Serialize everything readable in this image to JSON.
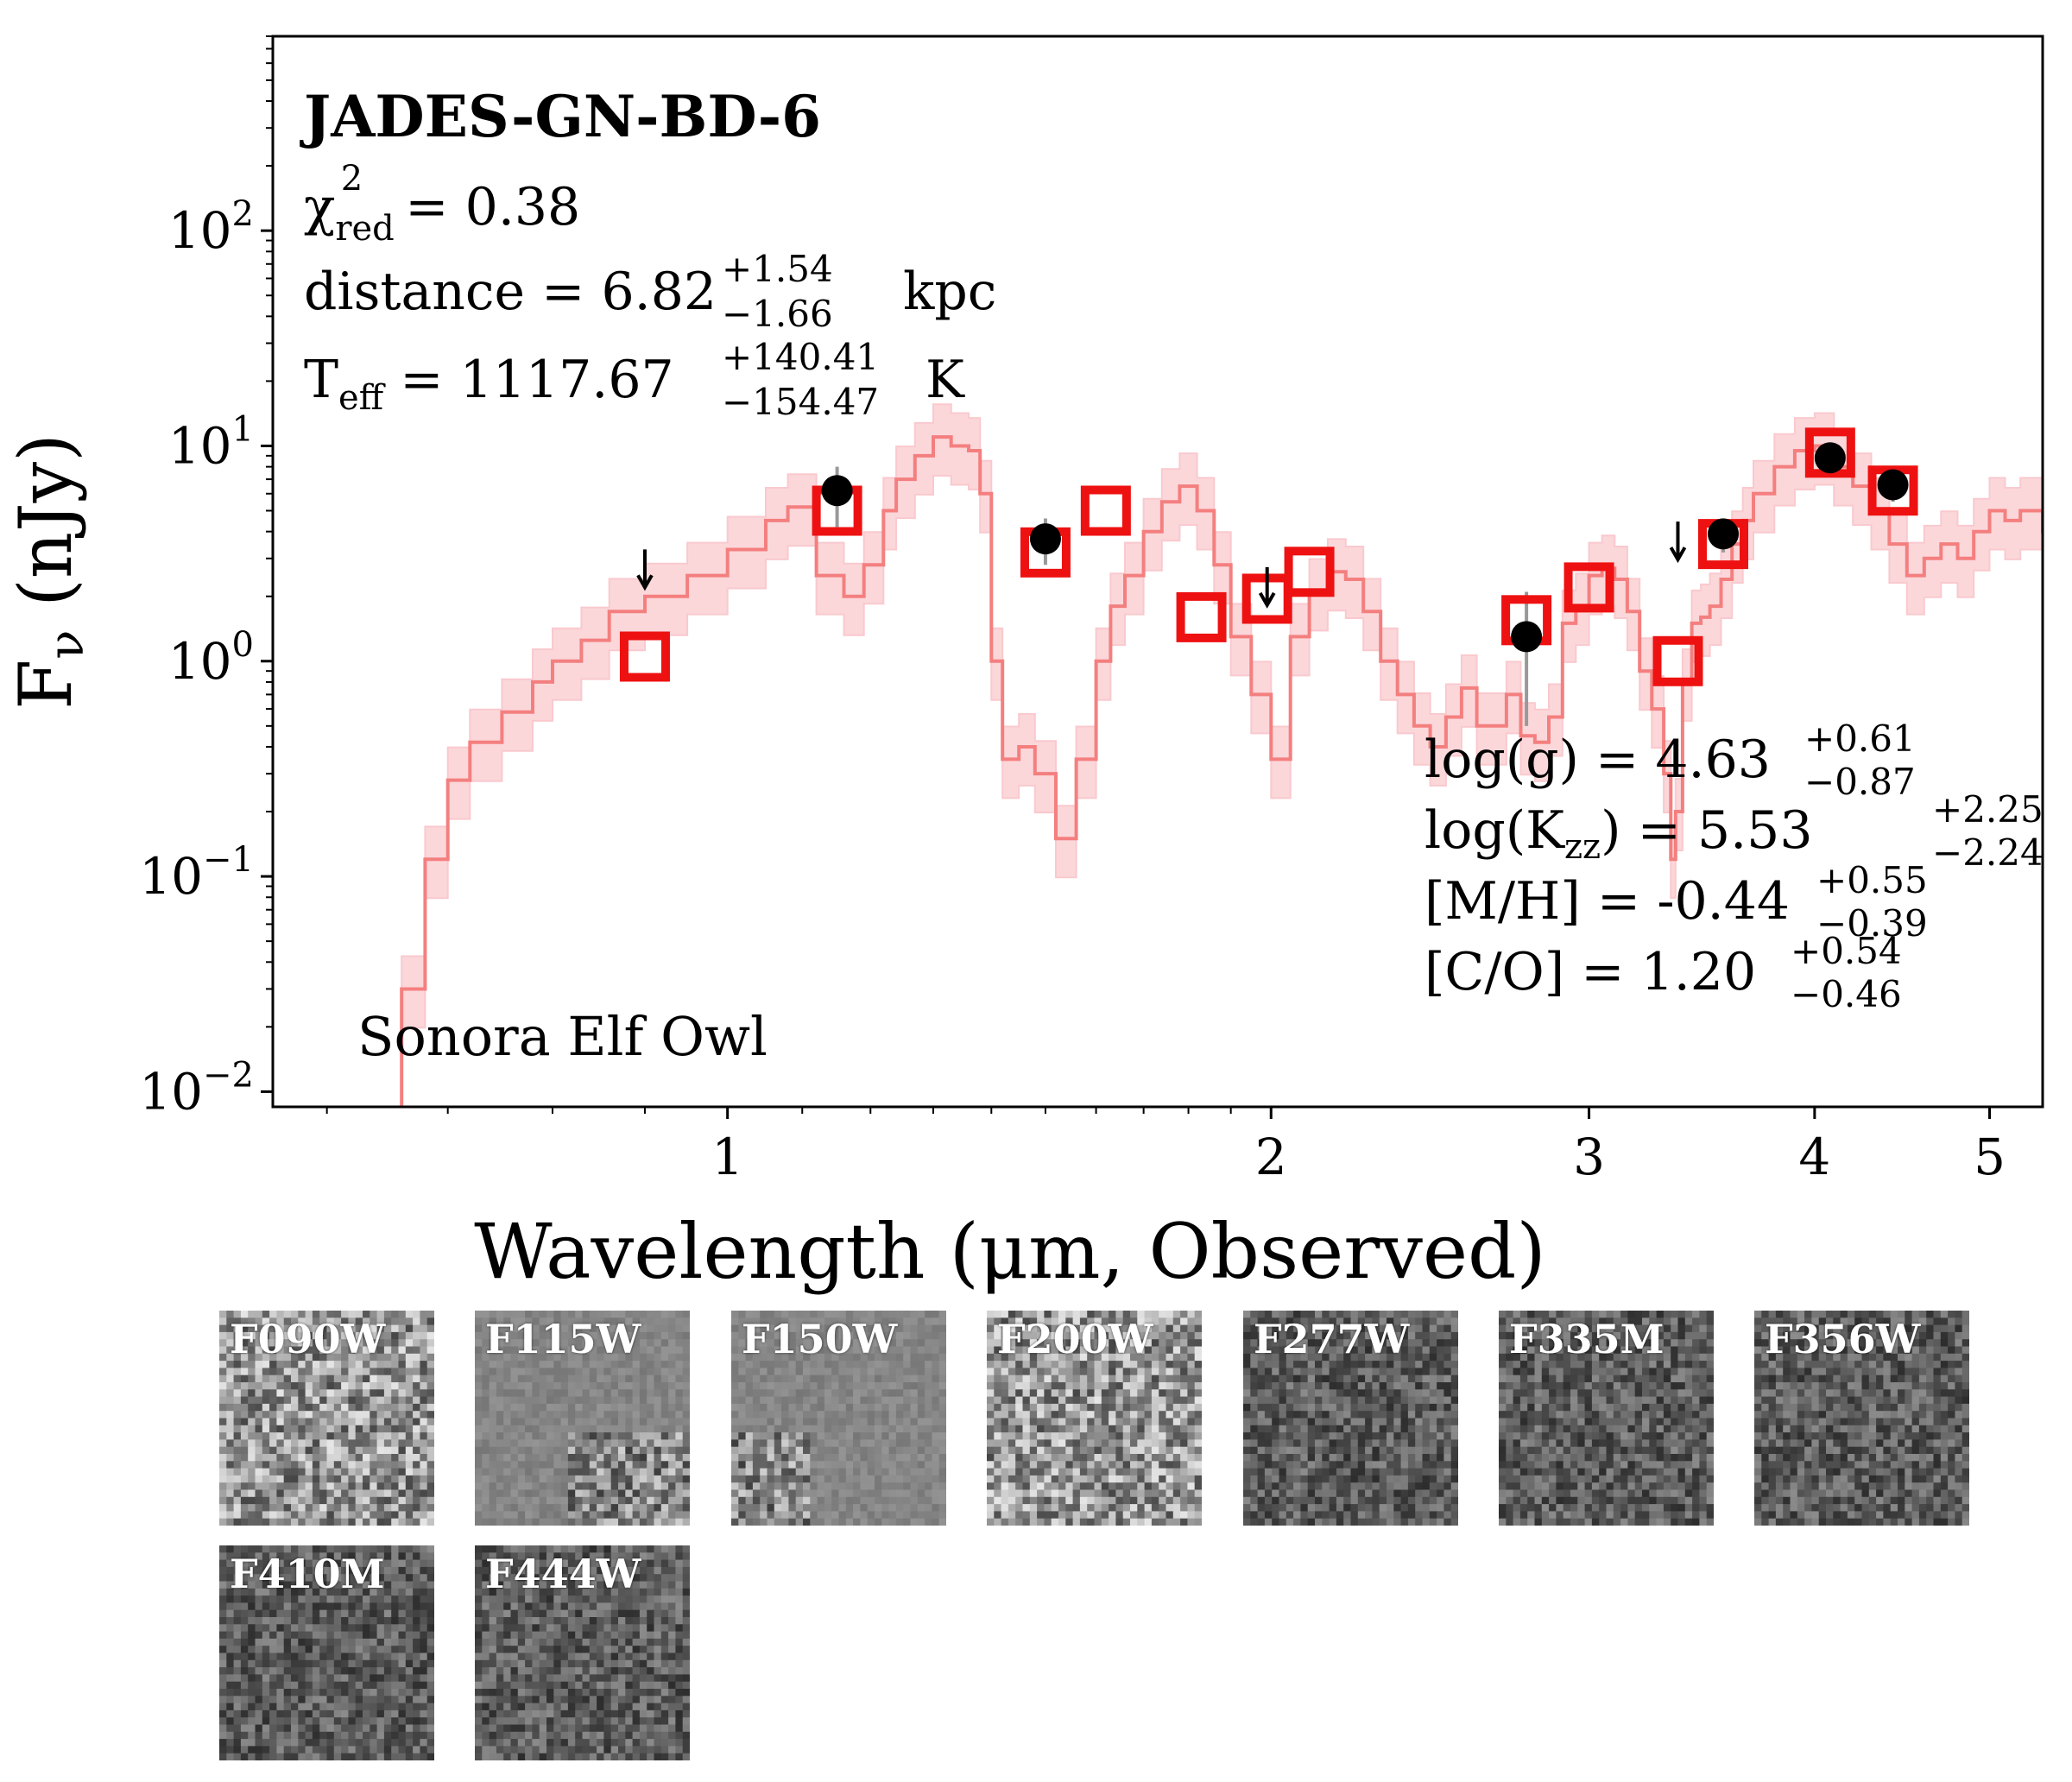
{
  "chart_data": {
    "type": "line",
    "title": "JADES-GN-BD-6",
    "chi2_value": "0.38",
    "chi2_symbol": "χ",
    "chi2_sup": "2",
    "chi2_sub": "red",
    "distance_label": "distance = ",
    "distance_value": "6.82",
    "distance_err_up": "+1.54",
    "distance_err_down": "−1.66",
    "distance_unit": "kpc",
    "teff_label": "T",
    "teff_sub": "eff",
    "teff_value": "1117.67",
    "teff_err_up": "+140.41",
    "teff_err_down": "−154.47",
    "teff_unit": "K",
    "params": [
      {
        "label": "log(g) = ",
        "sub": "",
        "label2": "",
        "value": "4.63",
        "up": "+0.61",
        "down": "−0.87"
      },
      {
        "label": "log(K",
        "sub": "zz",
        "label2": ") = ",
        "value": "5.53",
        "up": "+2.25",
        "down": "−2.24"
      },
      {
        "label": "[M/H] = ",
        "sub": "",
        "label2": "",
        "value": "-0.44",
        "up": "+0.55",
        "down": "−0.39"
      },
      {
        "label": "[C/O] = ",
        "sub": "",
        "label2": "",
        "value": "1.20",
        "up": "+0.54",
        "down": "−0.46"
      }
    ],
    "model_name": "Sonora Elf Owl",
    "xlabel": "Wavelength (μm, Observed)",
    "ylabel_main": "F",
    "ylabel_sub": "ν",
    "ylabel_unit": " (nJy)",
    "xscale": "log",
    "yscale": "log",
    "xlim": [
      0.56,
      5.35
    ],
    "ylim": [
      0.0085,
      800
    ],
    "xticks": [
      {
        "value": 1,
        "label": "1"
      },
      {
        "value": 2,
        "label": "2"
      },
      {
        "value": 3,
        "label": "3"
      },
      {
        "value": 4,
        "label": "4"
      },
      {
        "value": 5,
        "label": "5"
      }
    ],
    "yticks": [
      {
        "value": 0.01,
        "base": "10",
        "exp": "−2"
      },
      {
        "value": 0.1,
        "base": "10",
        "exp": "−1"
      },
      {
        "value": 1,
        "base": "10",
        "exp": "0"
      },
      {
        "value": 10,
        "base": "10",
        "exp": "1"
      },
      {
        "value": 100,
        "base": "10",
        "exp": "2"
      }
    ],
    "model_spectrum": {
      "x": [
        0.64,
        0.66,
        0.68,
        0.7,
        0.72,
        0.75,
        0.78,
        0.8,
        0.83,
        0.86,
        0.9,
        0.95,
        1.0,
        1.05,
        1.08,
        1.12,
        1.16,
        1.19,
        1.22,
        1.24,
        1.27,
        1.3,
        1.33,
        1.36,
        1.38,
        1.4,
        1.42,
        1.45,
        1.48,
        1.52,
        1.56,
        1.6,
        1.63,
        1.66,
        1.7,
        1.74,
        1.78,
        1.82,
        1.86,
        1.9,
        1.95,
        2.0,
        2.05,
        2.1,
        2.15,
        2.2,
        2.25,
        2.3,
        2.35,
        2.4,
        2.45,
        2.5,
        2.55,
        2.6,
        2.65,
        2.7,
        2.75,
        2.8,
        2.85,
        2.9,
        2.95,
        3.0,
        3.05,
        3.1,
        3.15,
        3.2,
        3.25,
        3.3,
        3.33,
        3.35,
        3.38,
        3.42,
        3.46,
        3.5,
        3.55,
        3.6,
        3.65,
        3.7,
        3.8,
        3.9,
        4.0,
        4.1,
        4.2,
        4.3,
        4.4,
        4.5,
        4.6,
        4.7,
        4.8,
        4.9,
        5.0,
        5.1,
        5.2,
        5.35
      ],
      "y": [
        0.006,
        0.03,
        0.12,
        0.28,
        0.42,
        0.58,
        0.8,
        1.0,
        1.25,
        1.7,
        2.0,
        2.5,
        3.3,
        4.5,
        5.2,
        2.5,
        2.0,
        2.8,
        5.0,
        7.0,
        9.0,
        11.0,
        10.0,
        9.5,
        6.0,
        1.0,
        0.35,
        0.4,
        0.3,
        0.15,
        0.35,
        1.0,
        1.8,
        2.5,
        4.0,
        5.5,
        6.5,
        5.0,
        2.8,
        1.3,
        0.7,
        0.35,
        1.3,
        2.1,
        2.6,
        2.4,
        1.7,
        1.0,
        0.7,
        0.5,
        0.4,
        0.55,
        0.75,
        0.5,
        0.5,
        0.7,
        0.45,
        0.42,
        0.55,
        1.5,
        1.8,
        2.5,
        2.7,
        2.4,
        1.7,
        0.9,
        0.6,
        0.3,
        0.12,
        0.2,
        0.8,
        1.5,
        1.6,
        1.8,
        2.4,
        3.5,
        4.5,
        6.0,
        8.0,
        9.5,
        10.0,
        8.0,
        6.5,
        5.0,
        3.5,
        2.5,
        3.0,
        3.5,
        3.0,
        4.0,
        5.0,
        4.5,
        5.0,
        4.0
      ]
    },
    "model_photometry": {
      "x": [
        0.9,
        1.15,
        1.5,
        1.62,
        1.83,
        1.99,
        2.1,
        2.77,
        3.0,
        3.36,
        3.56,
        4.08,
        4.42
      ],
      "y": [
        1.05,
        5.0,
        3.2,
        5.0,
        1.6,
        1.95,
        2.6,
        1.55,
        2.2,
        1.0,
        3.5,
        9.3,
        6.2
      ]
    },
    "observed": {
      "x": [
        1.15,
        1.5,
        2.77,
        3.56,
        4.08,
        4.42
      ],
      "y": [
        6.2,
        3.7,
        1.3,
        3.9,
        8.8,
        6.6
      ],
      "err_low": [
        4.2,
        2.8,
        0.5,
        3.2,
        7.5,
        5.5
      ],
      "err_high": [
        8.0,
        4.6,
        2.1,
        4.5,
        10.0,
        7.8
      ]
    },
    "upper_limits": {
      "x": [
        0.9,
        1.99,
        3.36
      ],
      "y": [
        2.6,
        2.15,
        3.5
      ]
    },
    "colors": {
      "model_line": "#f47f7f",
      "model_band": "#f9c9ce",
      "model_box": "#ee1111",
      "observed_point": "#000000",
      "error_bar": "#999999"
    }
  },
  "cutouts": [
    {
      "label": "F090W",
      "tone": "noisy-light"
    },
    {
      "label": "F115W",
      "tone": "flat-gray"
    },
    {
      "label": "F150W",
      "tone": "flat-gray"
    },
    {
      "label": "F200W",
      "tone": "noisy-light"
    },
    {
      "label": "F277W",
      "tone": "smooth-dark"
    },
    {
      "label": "F335M",
      "tone": "smooth-dark"
    },
    {
      "label": "F356W",
      "tone": "smooth-dark"
    },
    {
      "label": "F410M",
      "tone": "smooth-dark"
    },
    {
      "label": "F444W",
      "tone": "smooth-dark"
    }
  ]
}
